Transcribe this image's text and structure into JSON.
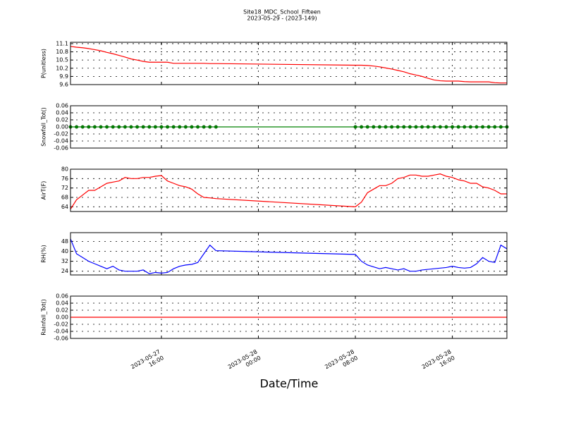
{
  "figure": {
    "title": "Site18_MDC_School_Fifteen",
    "subtitle": "2023-05-29 - (2023-149)",
    "xlabel": "Date/Time",
    "xlim": [
      "2023-05-27 08:30",
      "2023-05-28 20:30"
    ],
    "xticks": [
      "2023-05-27 16:00",
      "2023-05-28 00:00",
      "2023-05-28 08:00",
      "2023-05-28 16:00"
    ],
    "x": [
      "2023-05-27 08:30",
      "2023-05-27 09:00",
      "2023-05-27 09:30",
      "2023-05-27 10:00",
      "2023-05-27 10:30",
      "2023-05-27 11:00",
      "2023-05-27 11:30",
      "2023-05-27 12:00",
      "2023-05-27 12:30",
      "2023-05-27 13:00",
      "2023-05-27 13:30",
      "2023-05-27 14:00",
      "2023-05-27 14:30",
      "2023-05-27 15:00",
      "2023-05-27 15:30",
      "2023-05-27 16:00",
      "2023-05-27 16:30",
      "2023-05-27 17:00",
      "2023-05-27 17:30",
      "2023-05-27 18:00",
      "2023-05-27 18:30",
      "2023-05-27 19:00",
      "2023-05-27 19:30",
      "2023-05-27 20:00",
      "2023-05-27 20:30",
      "2023-05-28 08:00",
      "2023-05-28 08:30",
      "2023-05-28 09:00",
      "2023-05-28 09:30",
      "2023-05-28 10:00",
      "2023-05-28 10:30",
      "2023-05-28 11:00",
      "2023-05-28 11:30",
      "2023-05-28 12:00",
      "2023-05-28 12:30",
      "2023-05-28 13:00",
      "2023-05-28 13:30",
      "2023-05-28 14:00",
      "2023-05-28 14:30",
      "2023-05-28 15:00",
      "2023-05-28 15:30",
      "2023-05-28 16:00",
      "2023-05-28 16:30",
      "2023-05-28 17:00",
      "2023-05-28 17:30",
      "2023-05-28 18:00",
      "2023-05-28 18:30",
      "2023-05-28 19:00",
      "2023-05-28 19:30",
      "2023-05-28 20:00",
      "2023-05-28 20:30"
    ]
  },
  "chart_data": [
    {
      "type": "line",
      "ylabel": "P(unitless)",
      "ylim": [
        9.6,
        11.15
      ],
      "yticks": [
        9.6,
        9.9,
        10.2,
        10.5,
        10.8,
        11.1
      ],
      "grid": true,
      "series": [
        {
          "color": "#ff0000",
          "values": [
            11.0,
            10.97,
            10.95,
            10.92,
            10.88,
            10.84,
            10.78,
            10.73,
            10.67,
            10.61,
            10.54,
            10.5,
            10.45,
            10.42,
            10.42,
            10.42,
            10.42,
            10.38,
            10.38,
            10.38,
            10.38,
            10.38,
            10.38,
            10.37,
            10.37,
            10.31,
            10.31,
            10.3,
            10.28,
            10.25,
            10.21,
            10.17,
            10.12,
            10.07,
            10.0,
            9.95,
            9.9,
            9.83,
            9.77,
            9.74,
            9.73,
            9.73,
            9.73,
            9.71,
            9.7,
            9.7,
            9.7,
            9.7,
            9.67,
            9.66,
            9.66
          ]
        }
      ]
    },
    {
      "type": "line",
      "ylabel": "Snowfall_Tot()",
      "ylim": [
        -0.06,
        0.06
      ],
      "yticks": [
        -0.06,
        -0.04,
        -0.02,
        {
          "value": 0,
          "label": "0.00"
        },
        0.02,
        0.04,
        0.06
      ],
      "grid": true,
      "series": [
        {
          "color": "#008000",
          "marker": "o",
          "values": [
            0,
            0,
            0,
            0,
            0,
            0,
            0,
            0,
            0,
            0,
            0,
            0,
            0,
            0,
            0,
            0,
            0,
            0,
            0,
            0,
            0,
            0,
            0,
            0,
            0,
            0,
            0,
            0,
            0,
            0,
            0,
            0,
            0,
            0,
            0,
            0,
            0,
            0,
            0,
            0,
            0,
            0,
            0,
            0,
            0,
            0,
            0,
            0,
            0,
            0,
            0
          ]
        }
      ]
    },
    {
      "type": "line",
      "ylabel": "AirT(F)",
      "ylim": [
        62,
        80
      ],
      "yticks": [
        64,
        68,
        72,
        76,
        80
      ],
      "grid": true,
      "series": [
        {
          "color": "#ff0000",
          "values": [
            63,
            67,
            69,
            71,
            71,
            72.5,
            74,
            74.5,
            75,
            76.5,
            76,
            76,
            76.5,
            76.5,
            77,
            77.3,
            75,
            74,
            73,
            72.5,
            71.5,
            69.5,
            68,
            67.8,
            67.5,
            64,
            66,
            70,
            71.5,
            73,
            73,
            74,
            76,
            76.5,
            77.5,
            77.5,
            77,
            77,
            77.5,
            78,
            77,
            76.5,
            75.5,
            75,
            74,
            74,
            72.5,
            72,
            71,
            69.5,
            69.5
          ]
        }
      ]
    },
    {
      "type": "line",
      "ylabel": "RH(%)",
      "ylim": [
        21,
        55
      ],
      "yticks": [
        24,
        32,
        40,
        48
      ],
      "grid": true,
      "series": [
        {
          "color": "#0000ff",
          "values": [
            50,
            38,
            35,
            32,
            30,
            28,
            26,
            28,
            25,
            24,
            24,
            24,
            25,
            22,
            23,
            22.5,
            23,
            26,
            28,
            29,
            29.5,
            31,
            38,
            45,
            40.5,
            37.5,
            32,
            29,
            27.5,
            26,
            27,
            26,
            25,
            26,
            24,
            24,
            25,
            25.5,
            26,
            26.5,
            27,
            28,
            27,
            26.5,
            27,
            30,
            35,
            32,
            31,
            45,
            42
          ]
        }
      ]
    },
    {
      "type": "line",
      "ylabel": "Rainfall_Tot()",
      "ylim": [
        -0.06,
        0.06
      ],
      "yticks": [
        -0.06,
        -0.04,
        -0.02,
        {
          "value": 0,
          "label": "0.00"
        },
        0.02,
        0.04,
        0.06
      ],
      "grid": true,
      "series": [
        {
          "color": "#ff0000",
          "values": [
            0,
            0,
            0,
            0,
            0,
            0,
            0,
            0,
            0,
            0,
            0,
            0,
            0,
            0,
            0,
            0,
            0,
            0,
            0,
            0,
            0,
            0,
            0,
            0,
            0,
            0,
            0,
            0,
            0,
            0,
            0,
            0,
            0,
            0,
            0,
            0,
            0,
            0,
            0,
            0,
            0,
            0,
            0,
            0,
            0,
            0,
            0,
            0,
            0,
            0,
            0
          ]
        }
      ]
    }
  ]
}
